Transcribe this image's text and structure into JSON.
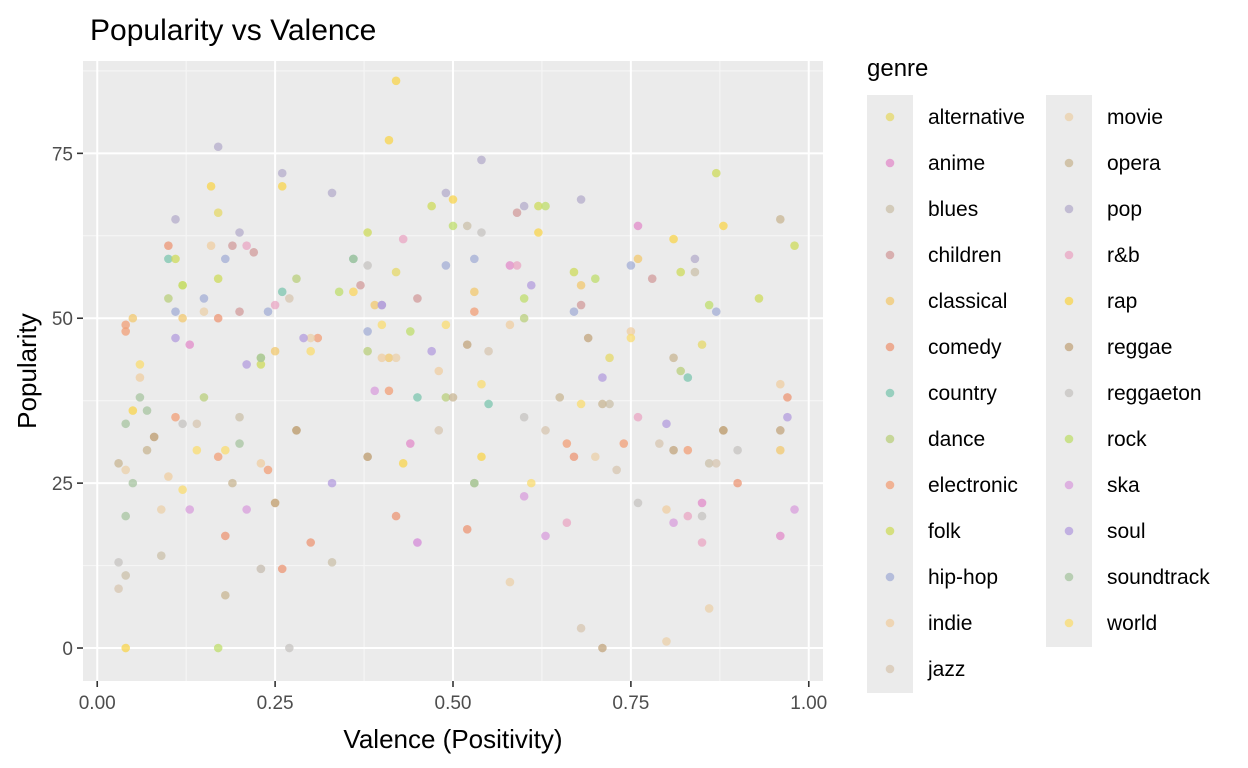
{
  "chart_data": {
    "type": "scatter",
    "title": "Popularity vs Valence",
    "xlabel": "Valence (Positivity)",
    "ylabel": "Popularity",
    "xlim": [
      -0.02,
      1.02
    ],
    "ylim": [
      -5,
      89
    ],
    "x_ticks": [
      0,
      0.25,
      0.5,
      0.75,
      1.0
    ],
    "x_tick_labels": [
      "0.00",
      "0.25",
      "0.50",
      "0.75",
      "1.00"
    ],
    "y_ticks": [
      0,
      25,
      50,
      75
    ],
    "y_tick_labels": [
      "0",
      "25",
      "50",
      "75"
    ],
    "grid": true,
    "legend": {
      "title": "genre",
      "placement": "right",
      "columns": [
        [
          "alternative",
          "anime",
          "blues",
          "children",
          "classical",
          "comedy",
          "country",
          "dance",
          "electronic",
          "folk",
          "hip-hop",
          "indie",
          "jazz"
        ],
        [
          "movie",
          "opera",
          "pop",
          "r&b",
          "rap",
          "reggae",
          "reggaeton",
          "rock",
          "ska",
          "soul",
          "soundtrack",
          "world"
        ]
      ]
    },
    "series": [
      {
        "name": "alternative",
        "color": "#E5D868",
        "points": [
          [
            0.17,
            66
          ],
          [
            0.42,
            57
          ],
          [
            0.72,
            44
          ],
          [
            0.85,
            46
          ],
          [
            0.12,
            55
          ]
        ]
      },
      {
        "name": "anime",
        "color": "#E18BC9",
        "points": [
          [
            0.13,
            46
          ],
          [
            0.76,
            64
          ],
          [
            0.85,
            22
          ],
          [
            0.96,
            17
          ],
          [
            0.44,
            31
          ],
          [
            0.58,
            58
          ]
        ]
      },
      {
        "name": "blues",
        "color": "#CBC0AA",
        "points": [
          [
            0.04,
            11
          ],
          [
            0.09,
            14
          ],
          [
            0.33,
            13
          ],
          [
            0.52,
            64
          ],
          [
            0.72,
            37
          ],
          [
            0.86,
            28
          ],
          [
            0.84,
            57
          ],
          [
            0.2,
            35
          ]
        ]
      },
      {
        "name": "children",
        "color": "#D29B9B",
        "points": [
          [
            0.19,
            61
          ],
          [
            0.22,
            60
          ],
          [
            0.37,
            55
          ],
          [
            0.45,
            53
          ],
          [
            0.59,
            66
          ],
          [
            0.68,
            52
          ],
          [
            0.78,
            56
          ],
          [
            0.2,
            51
          ]
        ]
      },
      {
        "name": "classical",
        "color": "#F2C86F",
        "points": [
          [
            0.05,
            50
          ],
          [
            0.12,
            50
          ],
          [
            0.25,
            45
          ],
          [
            0.39,
            52
          ],
          [
            0.41,
            44
          ],
          [
            0.53,
            54
          ],
          [
            0.68,
            55
          ],
          [
            0.76,
            59
          ],
          [
            0.96,
            30
          ]
        ]
      },
      {
        "name": "comedy",
        "color": "#EC9674",
        "points": [
          [
            0.1,
            61
          ],
          [
            0.17,
            50
          ],
          [
            0.18,
            17
          ],
          [
            0.26,
            12
          ],
          [
            0.3,
            16
          ],
          [
            0.42,
            20
          ],
          [
            0.52,
            18
          ],
          [
            0.67,
            29
          ],
          [
            0.9,
            25
          ],
          [
            0.97,
            38
          ]
        ]
      },
      {
        "name": "country",
        "color": "#7CC6AF",
        "points": [
          [
            0.26,
            54
          ],
          [
            0.36,
            59
          ],
          [
            0.45,
            38
          ],
          [
            0.55,
            37
          ],
          [
            0.83,
            41
          ],
          [
            0.1,
            59
          ]
        ]
      },
      {
        "name": "dance",
        "color": "#B9CF7C",
        "points": [
          [
            0.1,
            53
          ],
          [
            0.28,
            56
          ],
          [
            0.38,
            45
          ],
          [
            0.49,
            38
          ],
          [
            0.53,
            25
          ],
          [
            0.6,
            50
          ],
          [
            0.82,
            42
          ],
          [
            0.15,
            38
          ]
        ]
      },
      {
        "name": "electronic",
        "color": "#F29F77",
        "points": [
          [
            0.04,
            49
          ],
          [
            0.11,
            35
          ],
          [
            0.17,
            29
          ],
          [
            0.24,
            27
          ],
          [
            0.31,
            47
          ],
          [
            0.41,
            39
          ],
          [
            0.53,
            51
          ],
          [
            0.66,
            31
          ],
          [
            0.74,
            31
          ],
          [
            0.83,
            30
          ],
          [
            0.04,
            48
          ]
        ]
      },
      {
        "name": "folk",
        "color": "#CDDB5B",
        "points": [
          [
            0.11,
            59
          ],
          [
            0.17,
            56
          ],
          [
            0.23,
            43
          ],
          [
            0.38,
            63
          ],
          [
            0.47,
            67
          ],
          [
            0.62,
            67
          ],
          [
            0.67,
            57
          ],
          [
            0.82,
            57
          ],
          [
            0.93,
            53
          ],
          [
            0.98,
            61
          ],
          [
            0.87,
            72
          ]
        ]
      },
      {
        "name": "hip-hop",
        "color": "#A3AED5",
        "points": [
          [
            0.11,
            51
          ],
          [
            0.15,
            53
          ],
          [
            0.18,
            59
          ],
          [
            0.24,
            51
          ],
          [
            0.38,
            48
          ],
          [
            0.49,
            58
          ],
          [
            0.53,
            59
          ],
          [
            0.67,
            51
          ],
          [
            0.75,
            58
          ],
          [
            0.87,
            51
          ]
        ]
      },
      {
        "name": "indie",
        "color": "#EFCEA2",
        "points": [
          [
            0.06,
            41
          ],
          [
            0.1,
            26
          ],
          [
            0.16,
            61
          ],
          [
            0.23,
            28
          ],
          [
            0.36,
            54
          ],
          [
            0.4,
            44
          ],
          [
            0.48,
            42
          ],
          [
            0.58,
            49
          ],
          [
            0.75,
            48
          ],
          [
            0.8,
            21
          ],
          [
            0.96,
            40
          ]
        ]
      },
      {
        "name": "jazz",
        "color": "#D7C6B0",
        "points": [
          [
            0.03,
            9
          ],
          [
            0.08,
            32
          ],
          [
            0.14,
            34
          ],
          [
            0.27,
            53
          ],
          [
            0.38,
            29
          ],
          [
            0.48,
            33
          ],
          [
            0.55,
            45
          ],
          [
            0.63,
            33
          ],
          [
            0.73,
            27
          ],
          [
            0.79,
            31
          ],
          [
            0.87,
            28
          ],
          [
            0.68,
            3
          ]
        ]
      },
      {
        "name": "movie",
        "color": "#EBD0AA",
        "points": [
          [
            0.04,
            27
          ],
          [
            0.09,
            21
          ],
          [
            0.15,
            51
          ],
          [
            0.23,
            12
          ],
          [
            0.3,
            47
          ],
          [
            0.42,
            44
          ],
          [
            0.58,
            10
          ],
          [
            0.7,
            29
          ],
          [
            0.8,
            1
          ],
          [
            0.86,
            6
          ],
          [
            0.25,
            22
          ]
        ]
      },
      {
        "name": "opera",
        "color": "#C8B593",
        "points": [
          [
            0.03,
            28
          ],
          [
            0.07,
            30
          ],
          [
            0.19,
            25
          ],
          [
            0.28,
            33
          ],
          [
            0.5,
            38
          ],
          [
            0.65,
            38
          ],
          [
            0.71,
            37
          ],
          [
            0.81,
            44
          ],
          [
            0.88,
            33
          ],
          [
            0.96,
            65
          ],
          [
            0.18,
            8
          ]
        ]
      },
      {
        "name": "pop",
        "color": "#B4ACCB",
        "points": [
          [
            0.11,
            65
          ],
          [
            0.17,
            76
          ],
          [
            0.26,
            72
          ],
          [
            0.33,
            69
          ],
          [
            0.49,
            69
          ],
          [
            0.54,
            74
          ],
          [
            0.6,
            67
          ],
          [
            0.68,
            68
          ],
          [
            0.84,
            59
          ],
          [
            0.2,
            63
          ],
          [
            0.4,
            52
          ]
        ]
      },
      {
        "name": "r&b",
        "color": "#E9A5C3",
        "points": [
          [
            0.21,
            61
          ],
          [
            0.25,
            52
          ],
          [
            0.43,
            62
          ],
          [
            0.59,
            58
          ],
          [
            0.76,
            35
          ],
          [
            0.83,
            20
          ],
          [
            0.85,
            16
          ],
          [
            0.66,
            19
          ]
        ]
      },
      {
        "name": "rap",
        "color": "#F8D44C",
        "points": [
          [
            0.16,
            70
          ],
          [
            0.26,
            70
          ],
          [
            0.41,
            77
          ],
          [
            0.42,
            86
          ],
          [
            0.5,
            68
          ],
          [
            0.62,
            63
          ],
          [
            0.81,
            62
          ],
          [
            0.88,
            64
          ],
          [
            0.05,
            36
          ],
          [
            0.43,
            28
          ],
          [
            0.54,
            29
          ],
          [
            0.04,
            0
          ]
        ]
      },
      {
        "name": "reggae",
        "color": "#C2A47C",
        "points": [
          [
            0.08,
            32
          ],
          [
            0.25,
            22
          ],
          [
            0.28,
            33
          ],
          [
            0.38,
            29
          ],
          [
            0.52,
            46
          ],
          [
            0.69,
            47
          ],
          [
            0.81,
            30
          ],
          [
            0.88,
            33
          ],
          [
            0.96,
            33
          ],
          [
            0.71,
            0
          ]
        ]
      },
      {
        "name": "reggaeton",
        "color": "#C6C3C0",
        "points": [
          [
            0.03,
            13
          ],
          [
            0.12,
            34
          ],
          [
            0.23,
            12
          ],
          [
            0.38,
            58
          ],
          [
            0.54,
            63
          ],
          [
            0.6,
            35
          ],
          [
            0.76,
            22
          ],
          [
            0.85,
            20
          ],
          [
            0.9,
            30
          ],
          [
            0.27,
            0
          ]
        ]
      },
      {
        "name": "rock",
        "color": "#BFDE6C",
        "points": [
          [
            0.12,
            55
          ],
          [
            0.23,
            44
          ],
          [
            0.34,
            54
          ],
          [
            0.44,
            48
          ],
          [
            0.5,
            64
          ],
          [
            0.6,
            53
          ],
          [
            0.7,
            56
          ],
          [
            0.86,
            52
          ],
          [
            0.63,
            67
          ],
          [
            0.17,
            0
          ]
        ]
      },
      {
        "name": "ska",
        "color": "#D89DDC",
        "points": [
          [
            0.13,
            21
          ],
          [
            0.21,
            21
          ],
          [
            0.39,
            39
          ],
          [
            0.45,
            16
          ],
          [
            0.6,
            23
          ],
          [
            0.63,
            17
          ],
          [
            0.81,
            19
          ],
          [
            0.98,
            21
          ],
          [
            0.45,
            16
          ]
        ]
      },
      {
        "name": "soul",
        "color": "#B39CDE",
        "points": [
          [
            0.11,
            47
          ],
          [
            0.21,
            43
          ],
          [
            0.33,
            25
          ],
          [
            0.4,
            52
          ],
          [
            0.47,
            45
          ],
          [
            0.61,
            55
          ],
          [
            0.71,
            41
          ],
          [
            0.8,
            34
          ],
          [
            0.97,
            35
          ],
          [
            0.29,
            47
          ]
        ]
      },
      {
        "name": "soundtrack",
        "color": "#A7C4A0",
        "points": [
          [
            0.04,
            34
          ],
          [
            0.05,
            25
          ],
          [
            0.04,
            20
          ],
          [
            0.06,
            38
          ],
          [
            0.07,
            36
          ],
          [
            0.2,
            31
          ],
          [
            0.23,
            44
          ],
          [
            0.36,
            59
          ],
          [
            0.53,
            25
          ]
        ]
      },
      {
        "name": "world",
        "color": "#F9DC70",
        "points": [
          [
            0.06,
            43
          ],
          [
            0.14,
            30
          ],
          [
            0.18,
            30
          ],
          [
            0.3,
            45
          ],
          [
            0.4,
            49
          ],
          [
            0.49,
            49
          ],
          [
            0.54,
            40
          ],
          [
            0.68,
            37
          ],
          [
            0.75,
            47
          ],
          [
            0.12,
            24
          ],
          [
            0.61,
            25
          ],
          [
            0.36,
            54
          ]
        ]
      }
    ]
  }
}
